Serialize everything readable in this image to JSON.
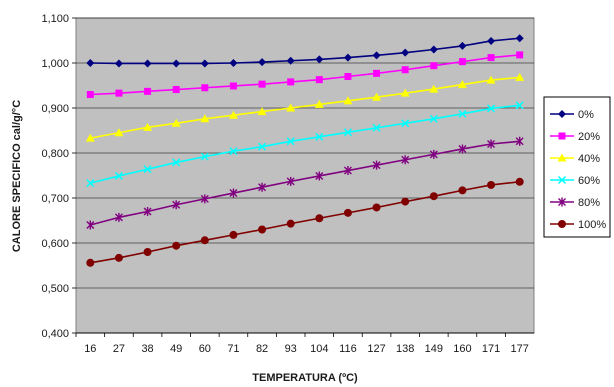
{
  "chart_data": {
    "type": "line",
    "title": "",
    "xlabel": "TEMPERATURA (ºC)",
    "ylabel": "CALORE SPECIFICO cal/g/°C",
    "categories": [
      "16",
      "27",
      "38",
      "49",
      "60",
      "71",
      "82",
      "93",
      "104",
      "116",
      "127",
      "138",
      "149",
      "160",
      "171",
      "177"
    ],
    "ylim": [
      0.4,
      1.1
    ],
    "yticks": [
      "0,400",
      "0,500",
      "0,600",
      "0,700",
      "0,800",
      "0,900",
      "1,000",
      "1,100"
    ],
    "ytick_values": [
      0.4,
      0.5,
      0.6,
      0.7,
      0.8,
      0.9,
      1.0,
      1.1
    ],
    "grid": true,
    "legend_position": "right",
    "plot_background": "#c0c0c0",
    "series": [
      {
        "name": "0%",
        "color": "#000080",
        "marker": "diamond",
        "values": [
          1.0,
          0.999,
          0.999,
          0.999,
          0.999,
          1.0,
          1.002,
          1.005,
          1.008,
          1.012,
          1.017,
          1.023,
          1.03,
          1.038,
          1.049,
          1.055
        ]
      },
      {
        "name": "20%",
        "color": "#ff00ff",
        "marker": "square",
        "values": [
          0.93,
          0.933,
          0.937,
          0.941,
          0.945,
          0.949,
          0.953,
          0.958,
          0.963,
          0.97,
          0.977,
          0.985,
          0.994,
          1.003,
          1.012,
          1.018
        ]
      },
      {
        "name": "40%",
        "color": "#ffff00",
        "marker": "triangle",
        "values": [
          0.833,
          0.845,
          0.857,
          0.866,
          0.876,
          0.884,
          0.892,
          0.9,
          0.908,
          0.916,
          0.924,
          0.933,
          0.942,
          0.952,
          0.962,
          0.968
        ]
      },
      {
        "name": "60%",
        "color": "#00ffff",
        "marker": "x",
        "values": [
          0.733,
          0.749,
          0.764,
          0.779,
          0.792,
          0.804,
          0.814,
          0.826,
          0.836,
          0.846,
          0.856,
          0.866,
          0.876,
          0.887,
          0.899,
          0.906
        ]
      },
      {
        "name": "80%",
        "color": "#800080",
        "marker": "asterisk",
        "values": [
          0.64,
          0.657,
          0.67,
          0.685,
          0.698,
          0.711,
          0.724,
          0.737,
          0.749,
          0.761,
          0.773,
          0.785,
          0.797,
          0.809,
          0.82,
          0.826
        ]
      },
      {
        "name": "100%",
        "color": "#800000",
        "marker": "circle",
        "values": [
          0.556,
          0.567,
          0.58,
          0.594,
          0.606,
          0.618,
          0.63,
          0.643,
          0.655,
          0.667,
          0.679,
          0.692,
          0.704,
          0.717,
          0.729,
          0.736
        ]
      }
    ]
  }
}
